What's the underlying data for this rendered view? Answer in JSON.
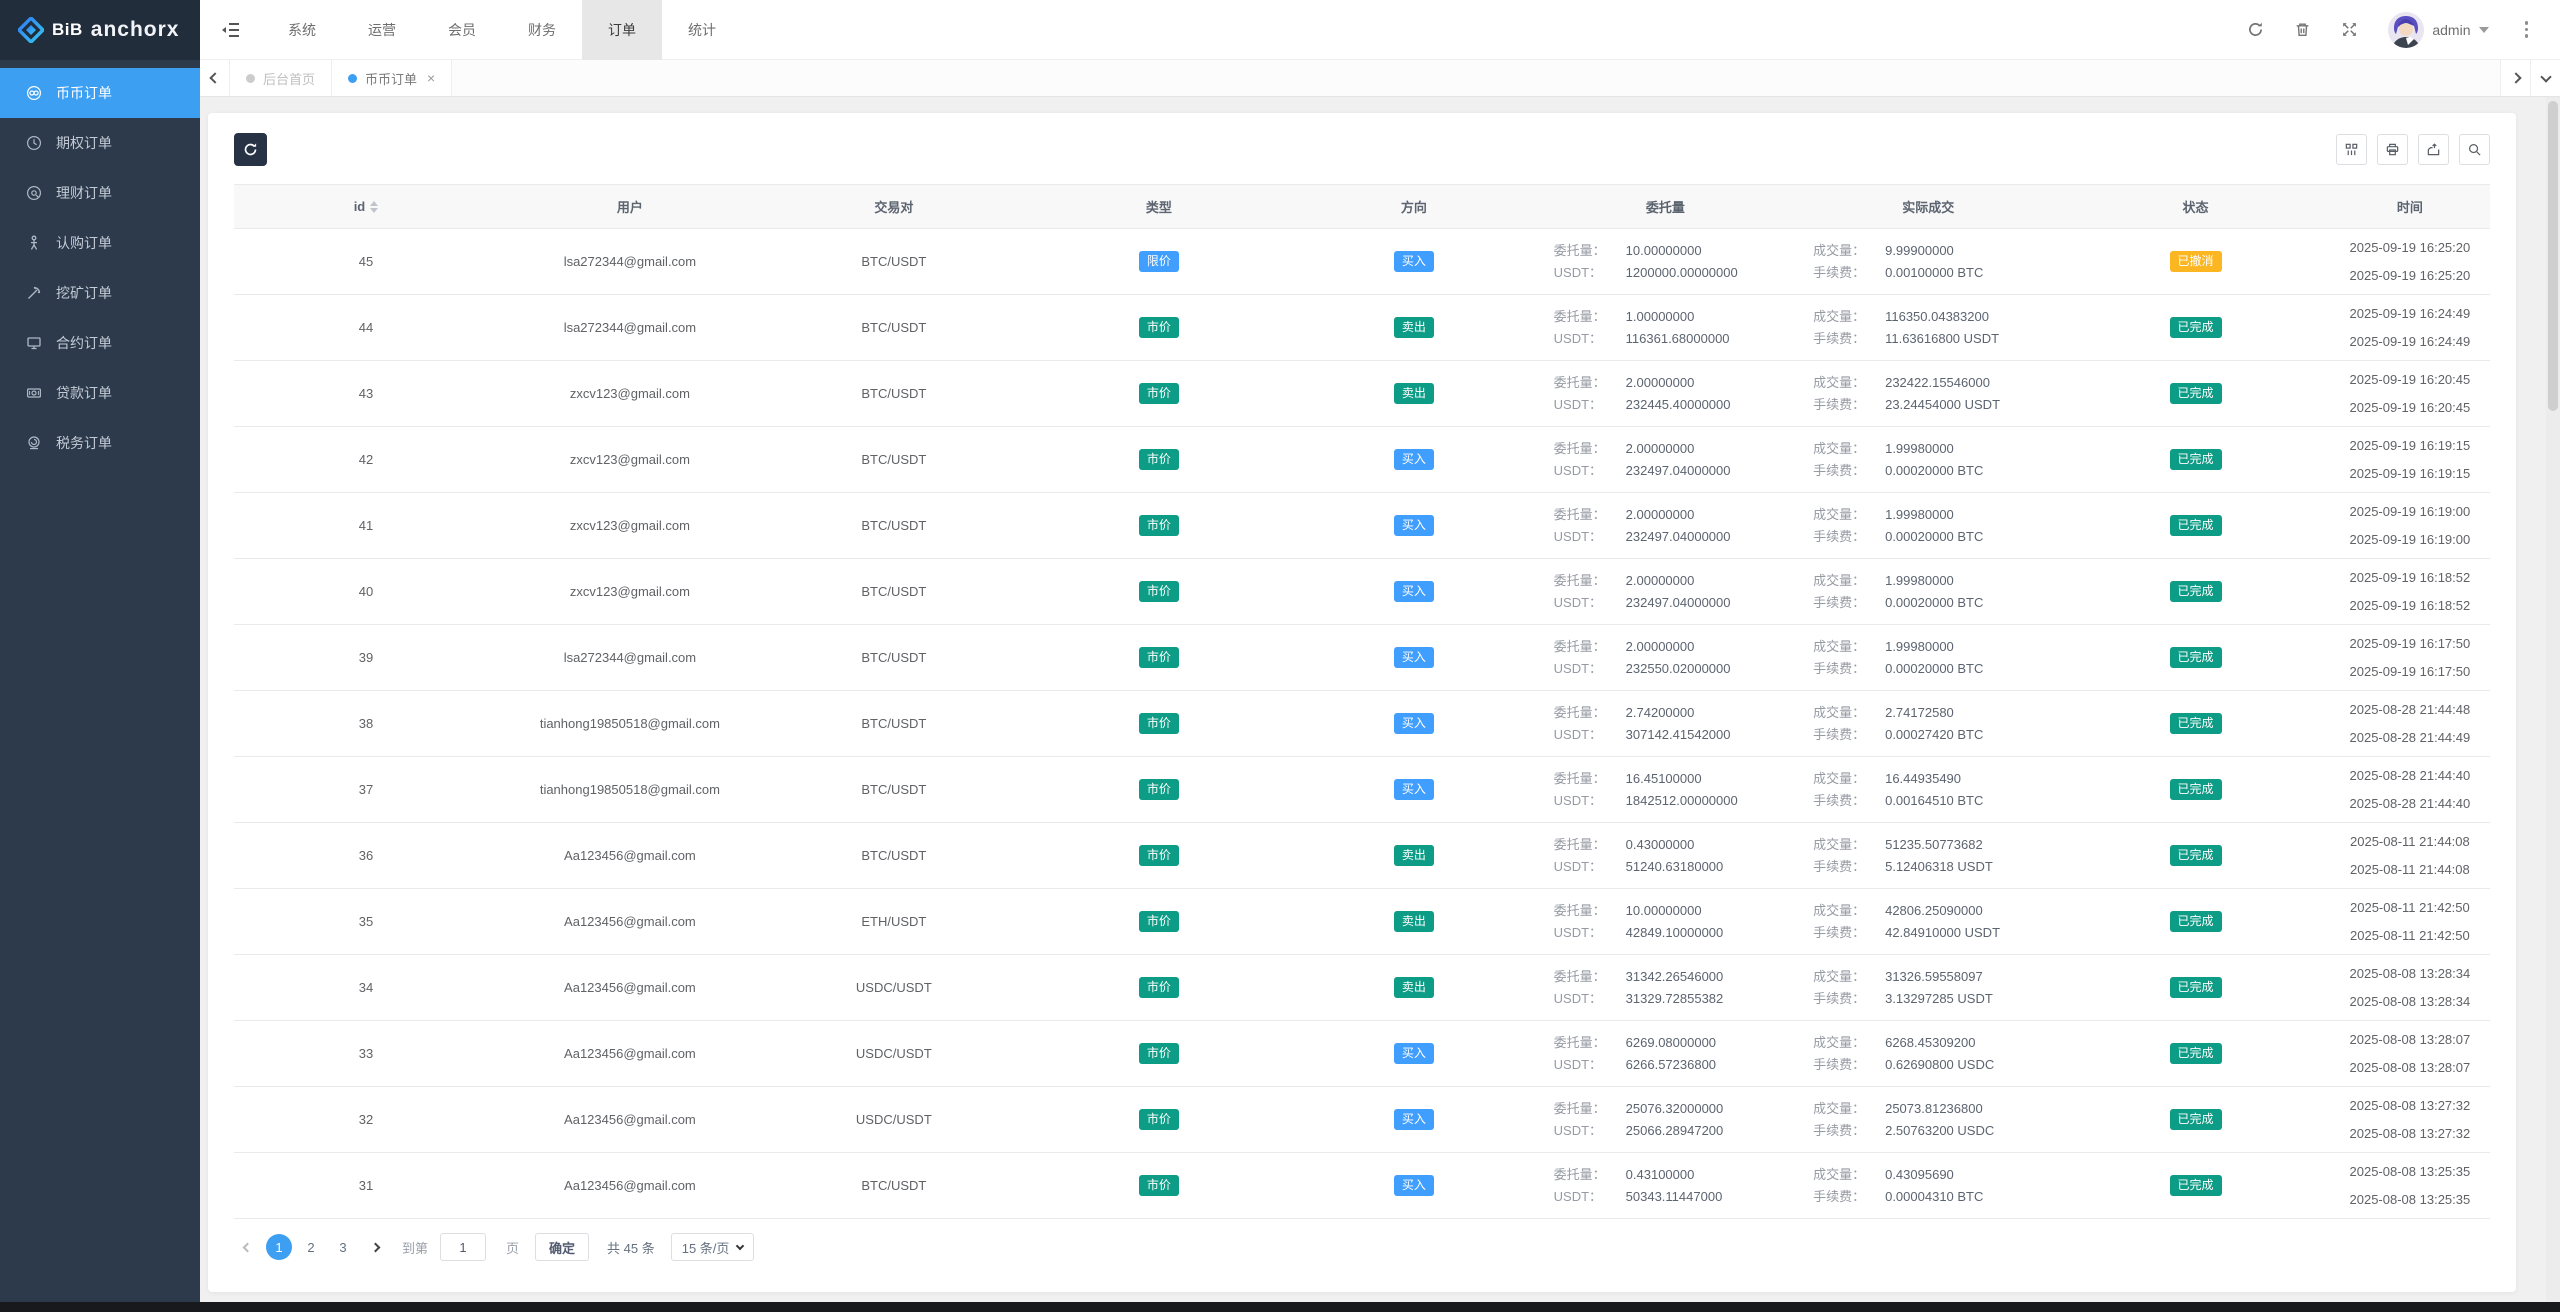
{
  "colors": {
    "blue": "#409eff",
    "teal": "#0d9c85",
    "orange": "#fbb622"
  },
  "brand": {
    "logo_bold": "BiB",
    "logo_name": "anchorx"
  },
  "topnav": {
    "items": [
      {
        "label": "系统",
        "active": false
      },
      {
        "label": "运营",
        "active": false
      },
      {
        "label": "会员",
        "active": false
      },
      {
        "label": "财务",
        "active": false
      },
      {
        "label": "订单",
        "active": true
      },
      {
        "label": "统计",
        "active": false
      }
    ],
    "admin_label": "admin"
  },
  "sidebar": {
    "items": [
      {
        "label": "币币订单",
        "icon": "coin-pair-icon",
        "active": true
      },
      {
        "label": "期权订单",
        "icon": "clock-icon",
        "active": false
      },
      {
        "label": "理财订单",
        "icon": "finance-icon",
        "active": false
      },
      {
        "label": "认购订单",
        "icon": "person-icon",
        "active": false
      },
      {
        "label": "挖矿订单",
        "icon": "mining-icon",
        "active": false
      },
      {
        "label": "合约订单",
        "icon": "monitor-icon",
        "active": false
      },
      {
        "label": "贷款订单",
        "icon": "banknote-icon",
        "active": false
      },
      {
        "label": "税务订单",
        "icon": "stamp-icon",
        "active": false
      }
    ]
  },
  "tabs": [
    {
      "label": "后台首页",
      "active": false,
      "closable": false
    },
    {
      "label": "币币订单",
      "active": true,
      "closable": true
    }
  ],
  "table": {
    "headers": [
      {
        "label": "id",
        "sortable": true
      },
      {
        "label": "用户"
      },
      {
        "label": "交易对"
      },
      {
        "label": "类型"
      },
      {
        "label": "方向"
      },
      {
        "label": "委托量"
      },
      {
        "label": "实际成交"
      },
      {
        "label": "状态"
      },
      {
        "label": "时间"
      }
    ],
    "labels": {
      "amount": "委托量：",
      "usdt": "USDT：",
      "filled": "成交量：",
      "fee": "手续费："
    },
    "rows": [
      {
        "id": "45",
        "user": "lsa272344@gmail.com",
        "pair": "BTC/USDT",
        "type": {
          "label": "限价",
          "color": "blue"
        },
        "direction": {
          "label": "买入",
          "color": "blue"
        },
        "amount": "10.00000000",
        "usdt": "1200000.00000000",
        "filled": "9.99900000",
        "fee": "0.00100000 BTC",
        "status": {
          "label": "已撤消",
          "color": "orange"
        },
        "times": [
          "2025-09-19 16:25:20",
          "2025-09-19 16:25:20"
        ]
      },
      {
        "id": "44",
        "user": "lsa272344@gmail.com",
        "pair": "BTC/USDT",
        "type": {
          "label": "市价",
          "color": "teal"
        },
        "direction": {
          "label": "卖出",
          "color": "teal"
        },
        "amount": "1.00000000",
        "usdt": "116361.68000000",
        "filled": "116350.04383200",
        "fee": "11.63616800 USDT",
        "status": {
          "label": "已完成",
          "color": "teal"
        },
        "times": [
          "2025-09-19 16:24:49",
          "2025-09-19 16:24:49"
        ]
      },
      {
        "id": "43",
        "user": "zxcv123@gmail.com",
        "pair": "BTC/USDT",
        "type": {
          "label": "市价",
          "color": "teal"
        },
        "direction": {
          "label": "卖出",
          "color": "teal"
        },
        "amount": "2.00000000",
        "usdt": "232445.40000000",
        "filled": "232422.15546000",
        "fee": "23.24454000 USDT",
        "status": {
          "label": "已完成",
          "color": "teal"
        },
        "times": [
          "2025-09-19 16:20:45",
          "2025-09-19 16:20:45"
        ]
      },
      {
        "id": "42",
        "user": "zxcv123@gmail.com",
        "pair": "BTC/USDT",
        "type": {
          "label": "市价",
          "color": "teal"
        },
        "direction": {
          "label": "买入",
          "color": "blue"
        },
        "amount": "2.00000000",
        "usdt": "232497.04000000",
        "filled": "1.99980000",
        "fee": "0.00020000 BTC",
        "status": {
          "label": "已完成",
          "color": "teal"
        },
        "times": [
          "2025-09-19 16:19:15",
          "2025-09-19 16:19:15"
        ]
      },
      {
        "id": "41",
        "user": "zxcv123@gmail.com",
        "pair": "BTC/USDT",
        "type": {
          "label": "市价",
          "color": "teal"
        },
        "direction": {
          "label": "买入",
          "color": "blue"
        },
        "amount": "2.00000000",
        "usdt": "232497.04000000",
        "filled": "1.99980000",
        "fee": "0.00020000 BTC",
        "status": {
          "label": "已完成",
          "color": "teal"
        },
        "times": [
          "2025-09-19 16:19:00",
          "2025-09-19 16:19:00"
        ]
      },
      {
        "id": "40",
        "user": "zxcv123@gmail.com",
        "pair": "BTC/USDT",
        "type": {
          "label": "市价",
          "color": "teal"
        },
        "direction": {
          "label": "买入",
          "color": "blue"
        },
        "amount": "2.00000000",
        "usdt": "232497.04000000",
        "filled": "1.99980000",
        "fee": "0.00020000 BTC",
        "status": {
          "label": "已完成",
          "color": "teal"
        },
        "times": [
          "2025-09-19 16:18:52",
          "2025-09-19 16:18:52"
        ]
      },
      {
        "id": "39",
        "user": "lsa272344@gmail.com",
        "pair": "BTC/USDT",
        "type": {
          "label": "市价",
          "color": "teal"
        },
        "direction": {
          "label": "买入",
          "color": "blue"
        },
        "amount": "2.00000000",
        "usdt": "232550.02000000",
        "filled": "1.99980000",
        "fee": "0.00020000 BTC",
        "status": {
          "label": "已完成",
          "color": "teal"
        },
        "times": [
          "2025-09-19 16:17:50",
          "2025-09-19 16:17:50"
        ]
      },
      {
        "id": "38",
        "user": "tianhong19850518@gmail.com",
        "pair": "BTC/USDT",
        "type": {
          "label": "市价",
          "color": "teal"
        },
        "direction": {
          "label": "买入",
          "color": "blue"
        },
        "amount": "2.74200000",
        "usdt": "307142.41542000",
        "filled": "2.74172580",
        "fee": "0.00027420 BTC",
        "status": {
          "label": "已完成",
          "color": "teal"
        },
        "times": [
          "2025-08-28 21:44:48",
          "2025-08-28 21:44:49"
        ]
      },
      {
        "id": "37",
        "user": "tianhong19850518@gmail.com",
        "pair": "BTC/USDT",
        "type": {
          "label": "市价",
          "color": "teal"
        },
        "direction": {
          "label": "买入",
          "color": "blue"
        },
        "amount": "16.45100000",
        "usdt": "1842512.00000000",
        "filled": "16.44935490",
        "fee": "0.00164510 BTC",
        "status": {
          "label": "已完成",
          "color": "teal"
        },
        "times": [
          "2025-08-28 21:44:40",
          "2025-08-28 21:44:40"
        ]
      },
      {
        "id": "36",
        "user": "Aa123456@gmail.com",
        "pair": "BTC/USDT",
        "type": {
          "label": "市价",
          "color": "teal"
        },
        "direction": {
          "label": "卖出",
          "color": "teal"
        },
        "amount": "0.43000000",
        "usdt": "51240.63180000",
        "filled": "51235.50773682",
        "fee": "5.12406318 USDT",
        "status": {
          "label": "已完成",
          "color": "teal"
        },
        "times": [
          "2025-08-11 21:44:08",
          "2025-08-11 21:44:08"
        ]
      },
      {
        "id": "35",
        "user": "Aa123456@gmail.com",
        "pair": "ETH/USDT",
        "type": {
          "label": "市价",
          "color": "teal"
        },
        "direction": {
          "label": "卖出",
          "color": "teal"
        },
        "amount": "10.00000000",
        "usdt": "42849.10000000",
        "filled": "42806.25090000",
        "fee": "42.84910000 USDT",
        "status": {
          "label": "已完成",
          "color": "teal"
        },
        "times": [
          "2025-08-11 21:42:50",
          "2025-08-11 21:42:50"
        ]
      },
      {
        "id": "34",
        "user": "Aa123456@gmail.com",
        "pair": "USDC/USDT",
        "type": {
          "label": "市价",
          "color": "teal"
        },
        "direction": {
          "label": "卖出",
          "color": "teal"
        },
        "amount": "31342.26546000",
        "usdt": "31329.72855382",
        "filled": "31326.59558097",
        "fee": "3.13297285 USDT",
        "status": {
          "label": "已完成",
          "color": "teal"
        },
        "times": [
          "2025-08-08 13:28:34",
          "2025-08-08 13:28:34"
        ]
      },
      {
        "id": "33",
        "user": "Aa123456@gmail.com",
        "pair": "USDC/USDT",
        "type": {
          "label": "市价",
          "color": "teal"
        },
        "direction": {
          "label": "买入",
          "color": "blue"
        },
        "amount": "6269.08000000",
        "usdt": "6266.57236800",
        "filled": "6268.45309200",
        "fee": "0.62690800 USDC",
        "status": {
          "label": "已完成",
          "color": "teal"
        },
        "times": [
          "2025-08-08 13:28:07",
          "2025-08-08 13:28:07"
        ]
      },
      {
        "id": "32",
        "user": "Aa123456@gmail.com",
        "pair": "USDC/USDT",
        "type": {
          "label": "市价",
          "color": "teal"
        },
        "direction": {
          "label": "买入",
          "color": "blue"
        },
        "amount": "25076.32000000",
        "usdt": "25066.28947200",
        "filled": "25073.81236800",
        "fee": "2.50763200 USDC",
        "status": {
          "label": "已完成",
          "color": "teal"
        },
        "times": [
          "2025-08-08 13:27:32",
          "2025-08-08 13:27:32"
        ]
      },
      {
        "id": "31",
        "user": "Aa123456@gmail.com",
        "pair": "BTC/USDT",
        "type": {
          "label": "市价",
          "color": "teal"
        },
        "direction": {
          "label": "买入",
          "color": "blue"
        },
        "amount": "0.43100000",
        "usdt": "50343.11447000",
        "filled": "0.43095690",
        "fee": "0.00004310 BTC",
        "status": {
          "label": "已完成",
          "color": "teal"
        },
        "times": [
          "2025-08-08 13:25:35",
          "2025-08-08 13:25:35"
        ]
      }
    ]
  },
  "pagination": {
    "pages": [
      "1",
      "2",
      "3"
    ],
    "active": "1",
    "goto_label": "到第",
    "input_value": "1",
    "page_unit": "页",
    "confirm_label": "确定",
    "total_label": "共 45 条",
    "page_size_label": "15 条/页"
  }
}
